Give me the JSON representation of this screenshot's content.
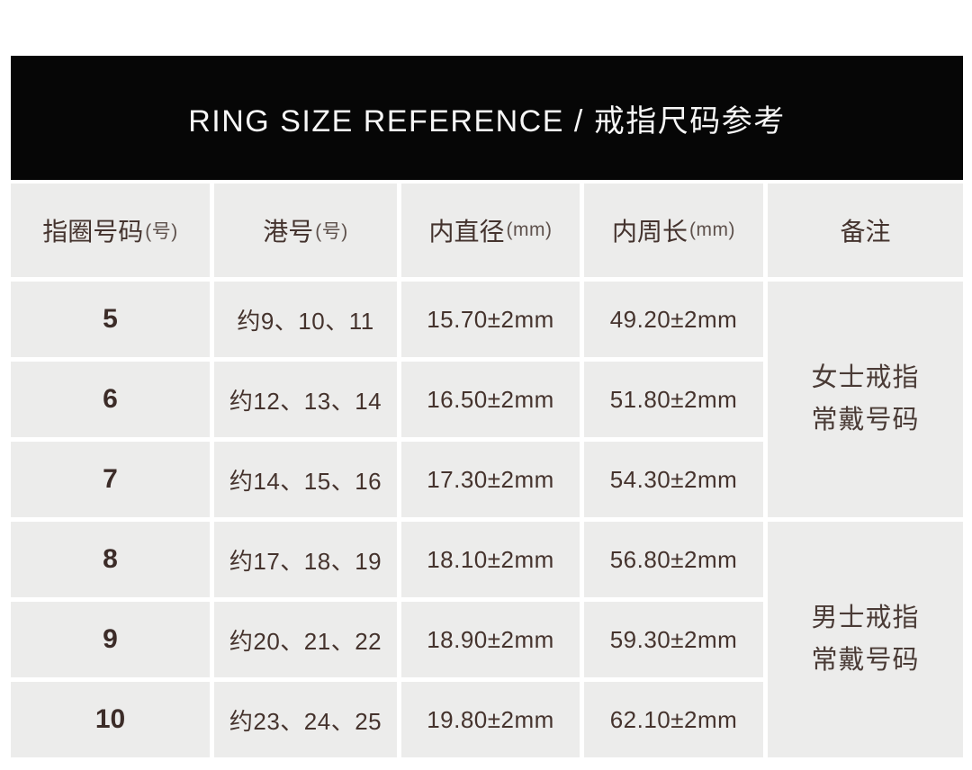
{
  "banner": {
    "title": "RING SIZE REFERENCE / 戒指尺码参考"
  },
  "table": {
    "headers": [
      {
        "main": "指圈号码",
        "sub": "(号)"
      },
      {
        "main": "港号",
        "sub": "(号)"
      },
      {
        "main": "内直径",
        "sub": "(mm)"
      },
      {
        "main": "内周长",
        "sub": "(mm)"
      },
      {
        "main": "备注",
        "sub": ""
      }
    ],
    "rows": [
      {
        "size": "5",
        "hk": "约9、10、11",
        "diameter": "15.70±2mm",
        "circumference": "49.20±2mm"
      },
      {
        "size": "6",
        "hk": "约12、13、14",
        "diameter": "16.50±2mm",
        "circumference": "51.80±2mm"
      },
      {
        "size": "7",
        "hk": "约14、15、16",
        "diameter": "17.30±2mm",
        "circumference": "54.30±2mm"
      },
      {
        "size": "8",
        "hk": "约17、18、19",
        "diameter": "18.10±2mm",
        "circumference": "56.80±2mm"
      },
      {
        "size": "9",
        "hk": "约20、21、22",
        "diameter": "18.90±2mm",
        "circumference": "59.30±2mm"
      },
      {
        "size": "10",
        "hk": "约23、24、25",
        "diameter": "19.80±2mm",
        "circumference": "62.10±2mm"
      }
    ],
    "remarks": [
      {
        "line1": "女士戒指",
        "line2": "常戴号码"
      },
      {
        "line1": "男士戒指",
        "line2": "常戴号码"
      }
    ]
  },
  "colors": {
    "page_bg": "#FFFFFF",
    "banner_bg": "#060606",
    "banner_text": "#F7F7F7",
    "cell_bg": "#ECECEB",
    "text_dark": "#44342F"
  }
}
